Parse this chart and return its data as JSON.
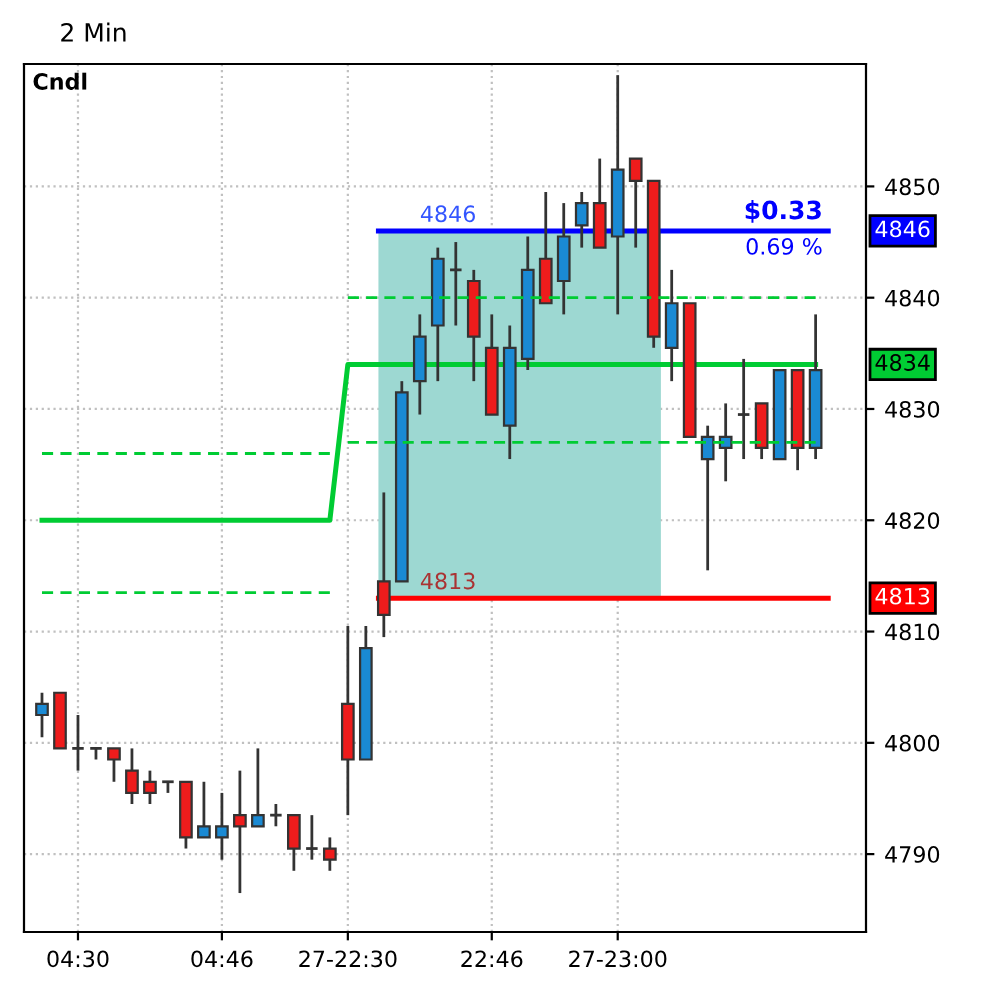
{
  "chart_data": {
    "type": "candlestick",
    "title": "2 Min",
    "categories": [
      null,
      null,
      "04:30",
      null,
      null,
      null,
      null,
      null,
      null,
      null,
      "04:46",
      null,
      null,
      null,
      null,
      null,
      null,
      "27-22:30",
      null,
      null,
      null,
      null,
      null,
      null,
      null,
      "22:46",
      null,
      null,
      null,
      null,
      null,
      null,
      "27-23:00",
      null,
      null,
      null,
      null,
      null,
      null,
      null,
      null,
      null,
      null,
      null
    ],
    "ohlc": [
      [
        4802.5,
        4804.5,
        4800.5,
        4803.5
      ],
      [
        4804.5,
        4804.5,
        4799.5,
        4799.5
      ],
      [
        4799.5,
        4802.5,
        4797.5,
        4799.5
      ],
      [
        4799.5,
        4799.5,
        4798.5,
        4799.5
      ],
      [
        4799.5,
        4799.5,
        4796.5,
        4798.5
      ],
      [
        4797.5,
        4799.5,
        4794.5,
        4795.5
      ],
      [
        4796.5,
        4797.5,
        4794.5,
        4795.5
      ],
      [
        4796.5,
        4796.5,
        4795.5,
        4796.5
      ],
      [
        4796.5,
        4796.5,
        4790.5,
        4791.5
      ],
      [
        4791.5,
        4796.5,
        4791.5,
        4792.5
      ],
      [
        4791.5,
        4795.5,
        4789.5,
        4792.5
      ],
      [
        4793.5,
        4797.5,
        4786.5,
        4792.5
      ],
      [
        4792.5,
        4799.5,
        4792.5,
        4793.5
      ],
      [
        4793.5,
        4794.5,
        4792.5,
        4793.5
      ],
      [
        4793.5,
        4793.5,
        4788.5,
        4790.5
      ],
      [
        4790.5,
        4793.5,
        4789.5,
        4790.5
      ],
      [
        4790.5,
        4791.5,
        4788.5,
        4789.5
      ],
      [
        4803.5,
        4810.5,
        4793.5,
        4798.5
      ],
      [
        4798.5,
        4810.5,
        4798.5,
        4808.5
      ],
      [
        4814.5,
        4822.5,
        4809.5,
        4811.5
      ],
      [
        4814.5,
        4832.5,
        4814.5,
        4831.5
      ],
      [
        4832.5,
        4838.5,
        4829.5,
        4836.5
      ],
      [
        4837.5,
        4844.5,
        4832.5,
        4843.5
      ],
      [
        4842.5,
        4845,
        4837.5,
        4842.5
      ],
      [
        4841.5,
        4842.5,
        4832.5,
        4836.5
      ],
      [
        4835.5,
        4838.5,
        4829.5,
        4829.5
      ],
      [
        4828.5,
        4837.5,
        4825.5,
        4835.5
      ],
      [
        4834.5,
        4845.5,
        4833.5,
        4842.5
      ],
      [
        4843.5,
        4849.5,
        4839.5,
        4839.5
      ],
      [
        4841.5,
        4848.5,
        4838.5,
        4845.5
      ],
      [
        4846.5,
        4849.5,
        4844.5,
        4848.5
      ],
      [
        4848.5,
        4852.5,
        4844.5,
        4844.5
      ],
      [
        4845.5,
        4860,
        4838.5,
        4851.5
      ],
      [
        4852.5,
        4852.5,
        4844.5,
        4850.5
      ],
      [
        4850.5,
        4850.5,
        4835.5,
        4836.5
      ],
      [
        4835.5,
        4842.5,
        4832.5,
        4839.5
      ],
      [
        4839.5,
        4839.5,
        4827.5,
        4827.5
      ],
      [
        4825.5,
        4828.5,
        4815.5,
        4827.5
      ],
      [
        4826.5,
        4830.5,
        4823.5,
        4827.5
      ],
      [
        4829.5,
        4834.5,
        4825.5,
        4829.5
      ],
      [
        4830.5,
        4830.5,
        4825.5,
        4826.5
      ],
      [
        4825.5,
        4833.5,
        4825.5,
        4833.5
      ],
      [
        4833.5,
        4833.5,
        4824.5,
        4826.5
      ],
      [
        4826.5,
        4838.5,
        4825.5,
        4833.5
      ]
    ],
    "colors": [
      "#1a8ad4",
      "#ee1c1c",
      "#333333",
      "#333333",
      "#ee1c1c",
      "#ee1c1c",
      "#ee1c1c",
      "#333333",
      "#ee1c1c",
      "#1a8ad4",
      "#1a8ad4",
      "#ee1c1c",
      "#1a8ad4",
      "#333333",
      "#ee1c1c",
      "#333333",
      "#ee1c1c",
      "#ee1c1c",
      "#1a8ad4",
      "#ee1c1c",
      "#1a8ad4",
      "#1a8ad4",
      "#1a8ad4",
      "#333333",
      "#ee1c1c",
      "#ee1c1c",
      "#1a8ad4",
      "#1a8ad4",
      "#ee1c1c",
      "#1a8ad4",
      "#1a8ad4",
      "#ee1c1c",
      "#1a8ad4",
      "#ee1c1c",
      "#ee1c1c",
      "#1a8ad4",
      "#ee1c1c",
      "#1a8ad4",
      "#1a8ad4",
      "#333333",
      "#ee1c1c",
      "#1a8ad4",
      "#ee1c1c",
      "#1a8ad4"
    ],
    "series": [
      {
        "type": "line",
        "line_style": "solid",
        "color": "#00cc33",
        "values": [
          4820,
          4820,
          4820,
          4820,
          4820,
          4820,
          4820,
          4820,
          4820,
          4820,
          4820,
          4820,
          4820,
          4820,
          4820,
          4820,
          4820,
          4834,
          4834,
          4834,
          4834,
          4834,
          4834,
          4834,
          4834,
          4834,
          4834,
          4834,
          4834,
          4834,
          4834,
          4834,
          4834,
          4834,
          4834,
          4834,
          4834,
          4834,
          4834,
          4834,
          4834,
          4834,
          4834,
          4834
        ]
      },
      {
        "type": "line",
        "line_style": "dashed",
        "color": "#00cc33",
        "values": [
          4826,
          4826,
          4826,
          4826,
          4826,
          4826,
          4826,
          4826,
          4826,
          4826,
          4826,
          4826,
          4826,
          4826,
          4826,
          4826,
          4826,
          null,
          null,
          null,
          null,
          null,
          null,
          null,
          null,
          null,
          null,
          null,
          null,
          null,
          null,
          null,
          null,
          null,
          null,
          null,
          null,
          null,
          null,
          null,
          null,
          null,
          null,
          null
        ]
      },
      {
        "type": "line",
        "line_style": "dashed",
        "color": "#00cc33",
        "values": [
          4813.5,
          4813.5,
          4813.5,
          4813.5,
          4813.5,
          4813.5,
          4813.5,
          4813.5,
          4813.5,
          4813.5,
          4813.5,
          4813.5,
          4813.5,
          4813.5,
          4813.5,
          4813.5,
          4813.5,
          null,
          null,
          null,
          null,
          null,
          null,
          null,
          null,
          null,
          null,
          null,
          null,
          null,
          null,
          null,
          null,
          null,
          null,
          null,
          null,
          null,
          null,
          null,
          null,
          null,
          null,
          null
        ]
      },
      {
        "type": "line",
        "line_style": "dashed",
        "color": "#00cc33",
        "values": [
          null,
          null,
          null,
          null,
          null,
          null,
          null,
          null,
          null,
          null,
          null,
          null,
          null,
          null,
          null,
          null,
          null,
          4840,
          4840,
          4840,
          4840,
          4840,
          4840,
          4840,
          4840,
          4840,
          4840,
          4840,
          4840,
          4840,
          4840,
          4840,
          4840,
          4840,
          4840,
          4840,
          4840,
          4840,
          4840,
          4840,
          4840,
          4840,
          4840,
          4840
        ]
      },
      {
        "type": "line",
        "line_style": "dashed",
        "color": "#00cc33",
        "values": [
          null,
          null,
          null,
          null,
          null,
          null,
          null,
          null,
          null,
          null,
          null,
          null,
          null,
          null,
          null,
          null,
          null,
          4827,
          4827,
          4827,
          4827,
          4827,
          4827,
          4827,
          4827,
          4827,
          4827,
          4827,
          4827,
          4827,
          4827,
          4827,
          4827,
          4827,
          4827,
          4827,
          4827,
          4827,
          4827,
          4827,
          4827,
          4827,
          4827,
          4827
        ]
      }
    ],
    "ref_lines": [
      {
        "axis": "y",
        "value": 4846,
        "label": "4846",
        "color": "#0000ff"
      },
      {
        "axis": "y",
        "value": 4813,
        "label": "4813",
        "color": "#ff0000"
      }
    ],
    "bands": [
      {
        "axis": "y",
        "from": 4813,
        "to": 4846,
        "color": "#9dd8d2"
      }
    ],
    "annotations": [
      "Cndl",
      "4834",
      {
        "text": "$0.33",
        "y": 4846
      },
      {
        "text": "0.69 %",
        "y": 4846
      },
      {
        "text": "4846",
        "y": 4846
      },
      {
        "text": "4813",
        "y": 4813
      }
    ],
    "ylim": [
      4783,
      4861
    ],
    "yticks": [
      4790,
      4800,
      4810,
      4820,
      4830,
      4840,
      4850
    ],
    "grid": true
  }
}
